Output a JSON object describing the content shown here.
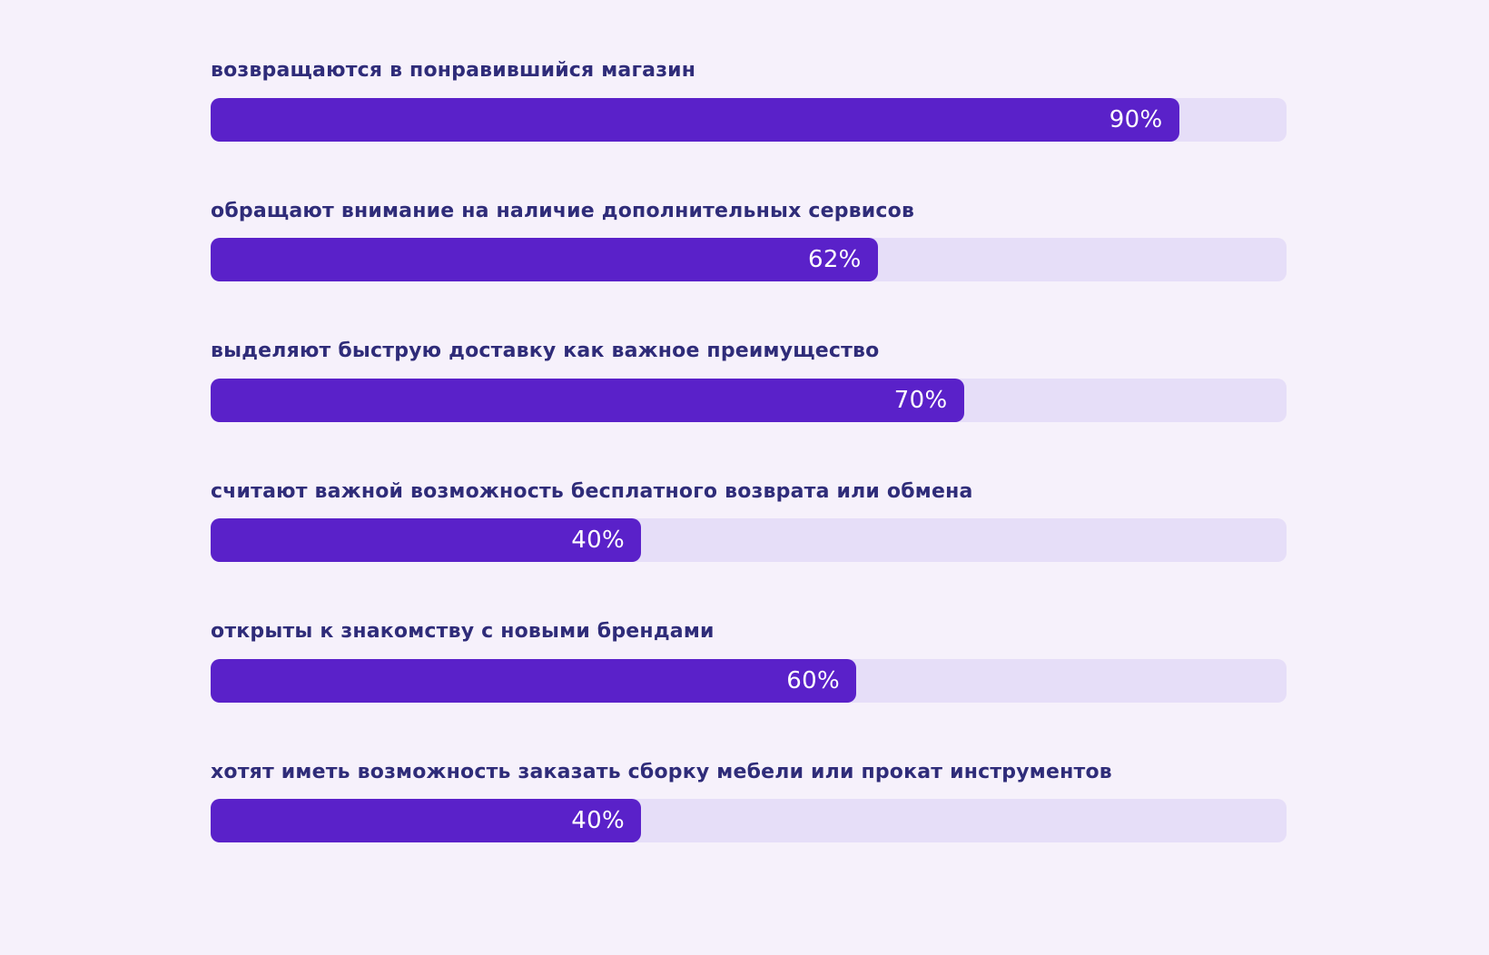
{
  "page": {
    "background_color": "#f6f1fb",
    "bar_fill_color": "#5a21c9",
    "bar_track_color": "#e6def8",
    "label_text_color": "#2f2c79",
    "value_text_color": "#ffffff"
  },
  "chart_data": {
    "type": "bar",
    "orientation": "horizontal",
    "unit": "%",
    "xlim": [
      0,
      100
    ],
    "grid": false,
    "legend": false,
    "title": "",
    "items": [
      {
        "label": "возвращаются в понравившийся магазин",
        "value": 90,
        "display": "90%"
      },
      {
        "label": "обращают внимание на наличие дополнительных сервисов",
        "value": 62,
        "display": "62%"
      },
      {
        "label": "выделяют быструю доставку как важное преимущество",
        "value": 70,
        "display": "70%"
      },
      {
        "label": "считают важной возможность бесплатного возврата или обмена",
        "value": 40,
        "display": "40%"
      },
      {
        "label": "открыты к знакомству с новыми брендами",
        "value": 60,
        "display": "60%"
      },
      {
        "label": "хотят иметь возможность заказать сборку мебели или прокат инструментов",
        "value": 40,
        "display": "40%"
      }
    ]
  }
}
